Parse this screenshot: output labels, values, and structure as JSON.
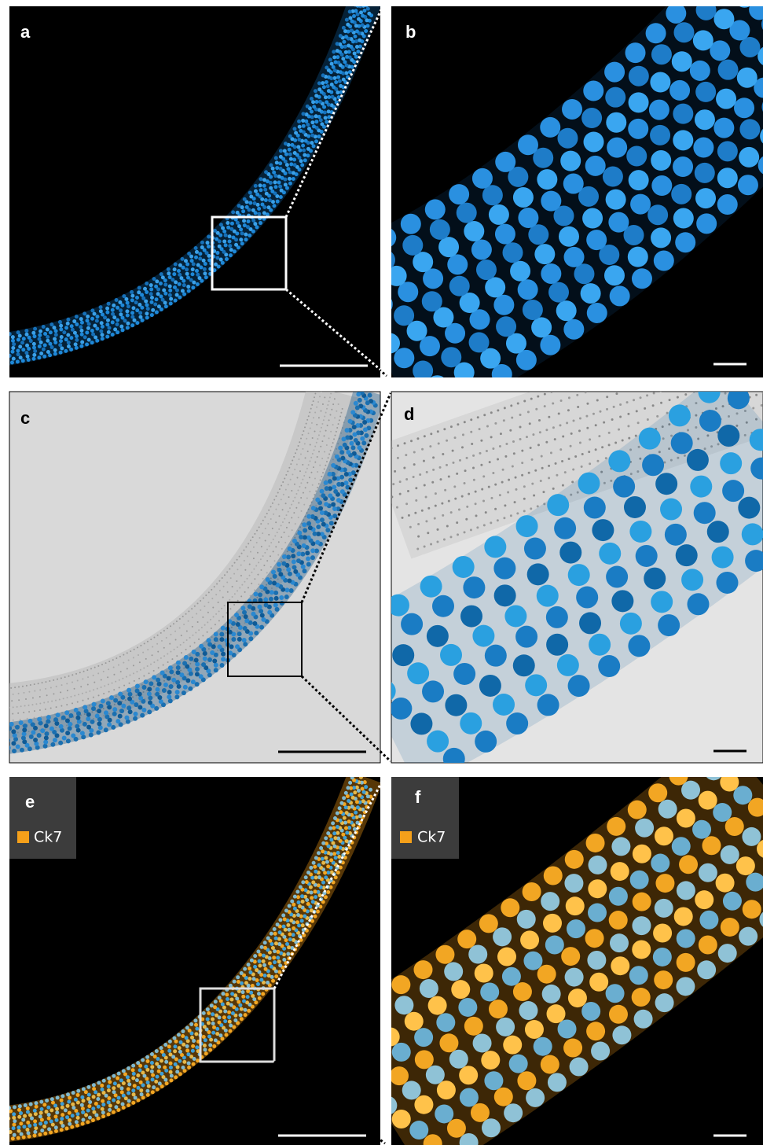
{
  "panels": [
    {
      "label": "a"
    },
    {
      "label": "b"
    },
    {
      "label": "c"
    },
    {
      "label": "d"
    },
    {
      "label": "e",
      "legend": "Ck7"
    },
    {
      "label": "f",
      "legend": "Ck7"
    }
  ]
}
